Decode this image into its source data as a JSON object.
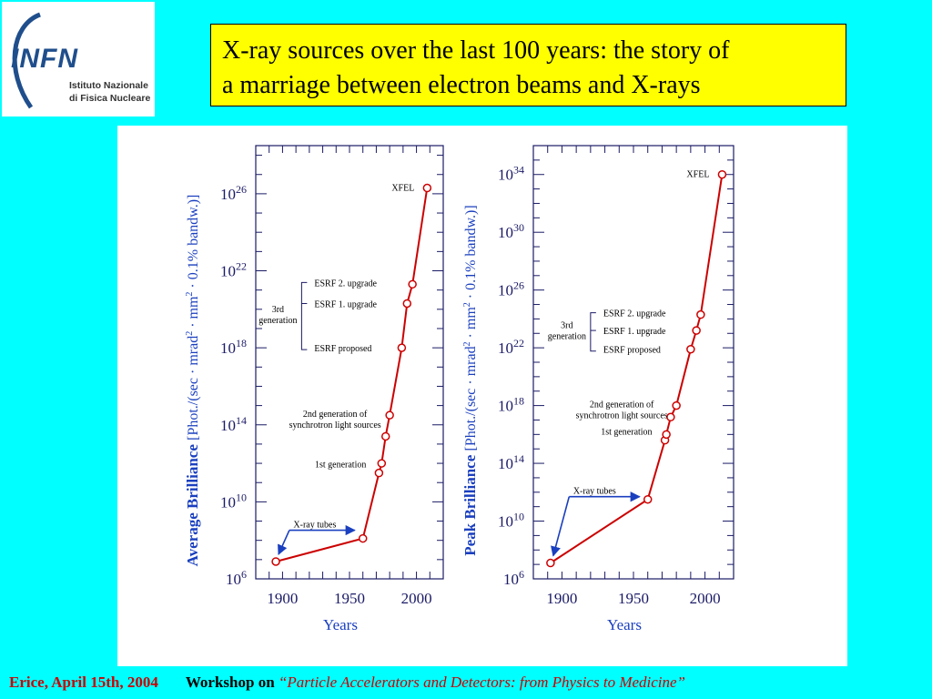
{
  "header": {
    "title_line1": "X-ray sources over the last 100 years: the story of",
    "title_line2": "a marriage between electron beams and X-rays"
  },
  "logo": {
    "acronym": "INFN",
    "line1": "Istituto Nazionale",
    "line2": "di Fisica Nucleare"
  },
  "footer": {
    "location_date": "Erice,  April 15th, 2004",
    "workshop_prefix": "Workshop on",
    "workshop_title": "“Particle Accelerators and Detectors: from Physics to Medicine”"
  },
  "colors": {
    "background": "#00ffff",
    "title_box": "#ffff00",
    "axis_label_blue": "#1a3fbf",
    "curve_red": "#cc0000",
    "footer_red": "#cc0000"
  },
  "chart_data": [
    {
      "type": "line",
      "ylabel_bold": "Average Brilliance",
      "ylabel_units": "[Phot./(sec · mrad",
      "ylabel_units_2": " · mm",
      "ylabel_units_3": " · 0.1% bandw.)]",
      "xlabel": "Years",
      "scale_y": "log",
      "xlim": [
        1880,
        2020
      ],
      "ylog_lim": [
        6,
        28.5
      ],
      "xticks": [
        "1900",
        "1950",
        "2000"
      ],
      "yticks": [
        {
          "exp": 6,
          "label": "10",
          "sup": "6"
        },
        {
          "exp": 10,
          "label": "10",
          "sup": "10"
        },
        {
          "exp": 14,
          "label": "10",
          "sup": "14"
        },
        {
          "exp": 18,
          "label": "10",
          "sup": "18"
        },
        {
          "exp": 22,
          "label": "10",
          "sup": "22"
        },
        {
          "exp": 26,
          "label": "10",
          "sup": "26"
        }
      ],
      "series": [
        {
          "points": [
            {
              "x": 1895,
              "ylog": 6.9
            },
            {
              "x": 1960,
              "ylog": 8.1
            },
            {
              "x": 1972,
              "ylog": 11.5
            },
            {
              "x": 1974,
              "ylog": 12.0
            },
            {
              "x": 1977,
              "ylog": 13.4
            },
            {
              "x": 1980,
              "ylog": 14.5
            },
            {
              "x": 1989,
              "ylog": 18.0
            },
            {
              "x": 1993,
              "ylog": 20.3
            },
            {
              "x": 1997,
              "ylog": 21.3
            },
            {
              "x": 2008,
              "ylog": 26.3
            }
          ]
        }
      ],
      "annotations": {
        "xfel": "XFEL",
        "third_gen_1": "3rd",
        "third_gen_2": "generation",
        "esrf2": "ESRF 2. upgrade",
        "esrf1": "ESRF 1. upgrade",
        "esrf0": "ESRF proposed",
        "second_gen_1": "2nd generation of",
        "second_gen_2": "synchrotron light sources",
        "first_gen": "1st generation",
        "xray_tubes": "X-ray tubes"
      }
    },
    {
      "type": "line",
      "ylabel_bold": "Peak Brilliance",
      "ylabel_units": "[Phot./(sec · mrad",
      "ylabel_units_2": " · mm",
      "ylabel_units_3": " · 0.1% bandw.)]",
      "xlabel": "Years",
      "scale_y": "log",
      "xlim": [
        1880,
        2020
      ],
      "ylog_lim": [
        6,
        36
      ],
      "xticks": [
        "1900",
        "1950",
        "2000"
      ],
      "yticks": [
        {
          "exp": 6,
          "label": "10",
          "sup": "6"
        },
        {
          "exp": 10,
          "label": "10",
          "sup": "10"
        },
        {
          "exp": 14,
          "label": "10",
          "sup": "14"
        },
        {
          "exp": 18,
          "label": "10",
          "sup": "18"
        },
        {
          "exp": 22,
          "label": "10",
          "sup": "22"
        },
        {
          "exp": 26,
          "label": "10",
          "sup": "26"
        },
        {
          "exp": 30,
          "label": "10",
          "sup": "30"
        },
        {
          "exp": 34,
          "label": "10",
          "sup": "34"
        }
      ],
      "series": [
        {
          "points": [
            {
              "x": 1892,
              "ylog": 7.1
            },
            {
              "x": 1960,
              "ylog": 11.5
            },
            {
              "x": 1972,
              "ylog": 15.6
            },
            {
              "x": 1973,
              "ylog": 16.0
            },
            {
              "x": 1976,
              "ylog": 17.2
            },
            {
              "x": 1980,
              "ylog": 18.0
            },
            {
              "x": 1990,
              "ylog": 21.9
            },
            {
              "x": 1994,
              "ylog": 23.2
            },
            {
              "x": 1997,
              "ylog": 24.3
            },
            {
              "x": 2012,
              "ylog": 34.0
            }
          ]
        }
      ],
      "annotations": {
        "xfel": "XFEL",
        "third_gen_1": "3rd",
        "third_gen_2": "generation",
        "esrf2": "ESRF 2. upgrade",
        "esrf1": "ESRF 1. upgrade",
        "esrf0": "ESRF proposed",
        "second_gen_1": "2nd generation of",
        "second_gen_2": "synchrotron light sources",
        "first_gen": "1st generation",
        "xray_tubes": "X-ray tubes"
      }
    }
  ]
}
